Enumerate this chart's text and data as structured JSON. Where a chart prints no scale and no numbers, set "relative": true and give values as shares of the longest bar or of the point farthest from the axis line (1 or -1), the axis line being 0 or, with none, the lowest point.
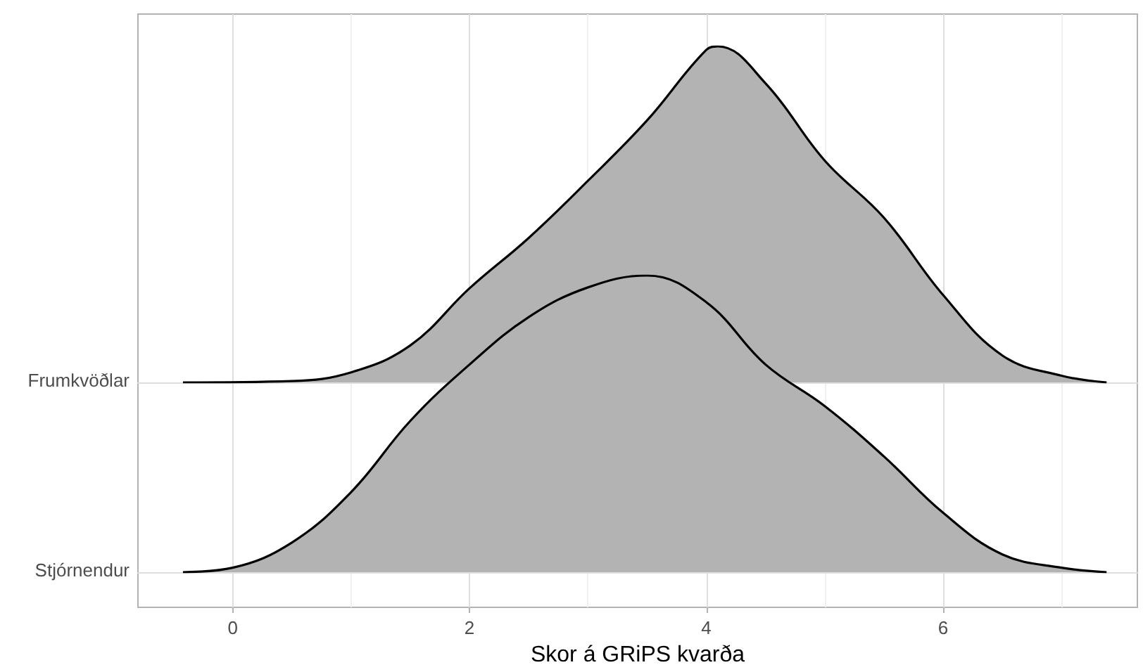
{
  "chart_data": [
    {
      "type": "area",
      "relative": true,
      "x": [
        -0.42,
        0.5,
        1,
        1.5,
        2,
        2.5,
        3,
        3.5,
        4,
        4.1,
        4.5,
        5,
        5.5,
        6,
        6.5,
        7,
        7.38
      ],
      "series": [
        {
          "name": "Frumkvöðlar",
          "color": "#b3b3b3",
          "values": [
            0,
            0.004,
            0.03,
            0.11,
            0.28,
            0.43,
            0.6,
            0.78,
            0.99,
            1,
            0.89,
            0.66,
            0.49,
            0.26,
            0.08,
            0.02,
            0
          ]
        }
      ],
      "xlim": [
        -0.8,
        7.64
      ],
      "xticks": [
        0,
        2,
        4,
        6
      ],
      "grid": "x",
      "tick_labels": false
    },
    {
      "type": "area",
      "relative": true,
      "xlabel": "Skor á GRiPS kvarða",
      "x": [
        -0.42,
        0,
        0.5,
        1,
        1.5,
        2,
        2.5,
        3,
        3.5,
        4,
        4.5,
        5,
        5.5,
        6,
        6.5,
        7,
        7.38
      ],
      "series": [
        {
          "name": "Stjórnendur",
          "color": "#b3b3b3",
          "values": [
            0,
            0.015,
            0.1,
            0.27,
            0.51,
            0.7,
            0.86,
            0.96,
            1,
            0.91,
            0.7,
            0.56,
            0.39,
            0.2,
            0.06,
            0.015,
            0
          ]
        }
      ],
      "xlim": [
        -0.8,
        7.64
      ],
      "xticks": [
        0,
        2,
        4,
        6
      ],
      "tick_labels": "x"
    }
  ]
}
